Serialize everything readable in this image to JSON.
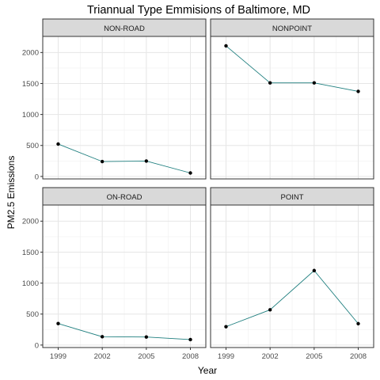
{
  "chart_data": {
    "type": "line",
    "title": "Triannual Type Emmisions of Baltimore, MD",
    "xlabel": "Year",
    "ylabel": "PM2.5 Emissions",
    "x": [
      1999,
      2002,
      2005,
      2008
    ],
    "xticks": [
      "1999",
      "2002",
      "2005",
      "2008"
    ],
    "yticks": [
      0,
      500,
      1000,
      1500,
      2000
    ],
    "ylim": [
      -40,
      2260
    ],
    "xlim": [
      1997.95,
      2009.05
    ],
    "grid": true,
    "line_color": "#1f7f7f",
    "point_color": "#000000",
    "strip_fill": "#d9d9d9",
    "panels": [
      {
        "name": "NON-ROAD",
        "values": [
          522.9,
          240.8,
          248.9,
          55.8
        ]
      },
      {
        "name": "NONPOINT",
        "values": [
          2107.6,
          1509.5,
          1509.5,
          1373.2
        ]
      },
      {
        "name": "ON-ROAD",
        "values": [
          346.8,
          134.3,
          130.4,
          88.3
        ]
      },
      {
        "name": "POINT",
        "values": [
          296.8,
          569.3,
          1202.5,
          344.98
        ]
      }
    ]
  }
}
